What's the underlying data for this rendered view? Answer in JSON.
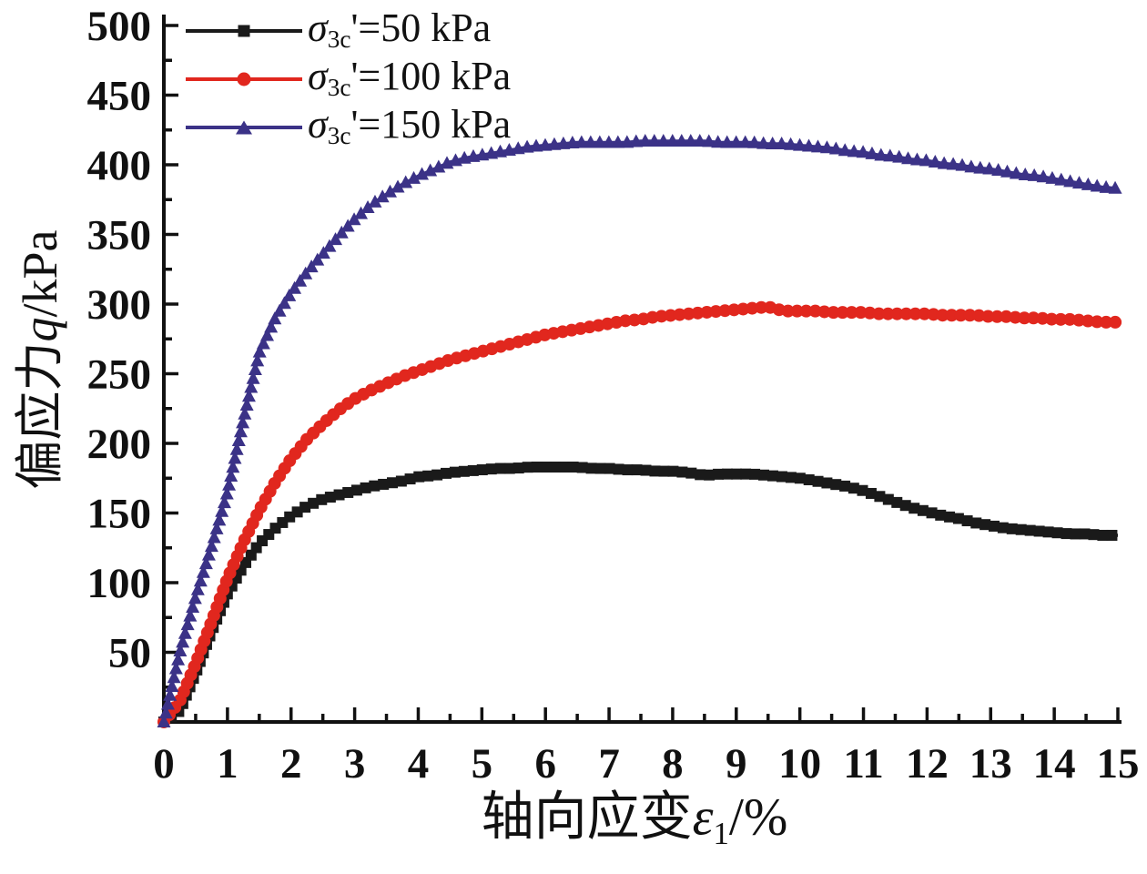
{
  "figure": {
    "background": "#ffffff",
    "axis_color": "#111111"
  },
  "chart_data": {
    "type": "line",
    "title": "",
    "xlabel": {
      "cn": "轴向应变",
      "italic": "ε",
      "sub": "1",
      "rest": "/%"
    },
    "ylabel": {
      "cn": "偏应力",
      "italic": "q",
      "rest": "/kPa"
    },
    "xlim": [
      0,
      15
    ],
    "ylim": [
      0,
      500
    ],
    "x_major_step": 1,
    "x_minor_step": 0.5,
    "y_major_step": 50,
    "y_minor_step": 25,
    "x_tick_labels": [
      "0",
      "1",
      "2",
      "3",
      "4",
      "5",
      "6",
      "7",
      "8",
      "9",
      "10",
      "11",
      "12",
      "13",
      "14",
      "15"
    ],
    "y_tick_labels": [
      "50",
      "100",
      "150",
      "200",
      "250",
      "300",
      "350",
      "400",
      "450",
      "500"
    ],
    "grid": false,
    "legend_position": "top-left",
    "x": [
      0,
      0.25,
      0.5,
      0.75,
      1,
      1.25,
      1.5,
      1.75,
      2,
      2.25,
      2.5,
      2.75,
      3,
      3.25,
      3.5,
      3.75,
      4,
      4.25,
      4.5,
      4.75,
      5,
      5.25,
      5.5,
      5.75,
      6,
      6.25,
      6.5,
      6.75,
      7,
      7.25,
      7.5,
      7.75,
      8,
      8.25,
      8.5,
      8.75,
      9,
      9.25,
      9.5,
      9.75,
      10,
      10.25,
      10.5,
      10.75,
      11,
      11.25,
      11.5,
      11.75,
      12,
      12.25,
      12.5,
      12.75,
      13,
      13.25,
      13.5,
      13.75,
      14,
      14.25,
      14.5,
      14.75,
      15
    ],
    "series": [
      {
        "name_sigma": "σ",
        "name_sub": "3c",
        "name_rest": "'=50 kPa",
        "label_plain": "σ3c'=50 kPa",
        "color": "#1a1a1a",
        "marker": "square",
        "values": [
          0,
          8,
          35,
          65,
          92,
          112,
          128,
          139,
          148,
          155,
          160,
          163,
          166,
          169,
          171,
          173,
          176,
          177,
          179,
          180,
          181,
          182,
          182,
          183,
          183,
          183,
          183,
          182,
          182,
          181,
          181,
          180,
          180,
          179,
          177,
          178,
          178,
          178,
          177,
          176,
          175,
          173,
          171,
          169,
          166,
          162,
          158,
          154,
          151,
          148,
          146,
          143,
          141,
          139,
          138,
          137,
          136,
          135,
          135,
          134,
          134
        ]
      },
      {
        "name_sigma": "σ",
        "name_sub": "3c",
        "name_rest": "'=100 kPa",
        "label_plain": "σ3c'=100 kPa",
        "color": "#e1271e",
        "marker": "circle",
        "values": [
          0,
          15,
          42,
          72,
          103,
          129,
          152,
          172,
          189,
          203,
          214,
          224,
          232,
          238,
          243,
          248,
          252,
          256,
          260,
          263,
          266,
          269,
          272,
          275,
          278,
          280,
          282,
          284,
          286,
          288,
          289,
          291,
          292,
          293,
          294,
          295,
          296,
          297,
          298,
          295,
          295,
          295,
          294,
          294,
          294,
          293,
          293,
          293,
          293,
          292,
          292,
          292,
          291,
          291,
          290,
          290,
          289,
          289,
          288,
          287,
          287
        ]
      },
      {
        "name_sigma": "σ",
        "name_sub": "3c",
        "name_rest": "'=150 kPa",
        "label_plain": "σ3c'=150 kPa",
        "color": "#3b3287",
        "marker": "triangle",
        "values": [
          0,
          50,
          90,
          126,
          165,
          217,
          265,
          290,
          308,
          323,
          336,
          349,
          361,
          371,
          379,
          386,
          392,
          397,
          402,
          405,
          407,
          409,
          411,
          413,
          414,
          415,
          416,
          416,
          416,
          416,
          417,
          417,
          417,
          417,
          417,
          416,
          416,
          416,
          415,
          415,
          414,
          413,
          412,
          410,
          409,
          407,
          406,
          404,
          403,
          401,
          400,
          398,
          397,
          395,
          393,
          392,
          390,
          388,
          386,
          384,
          383
        ]
      }
    ]
  }
}
